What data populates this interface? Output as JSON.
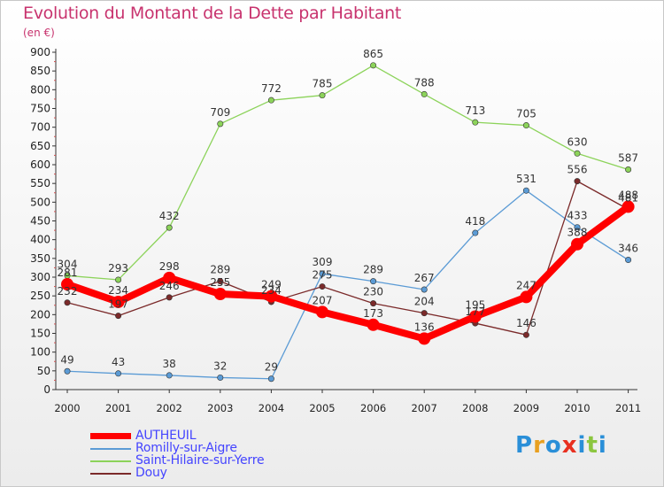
{
  "title": "Evolution du Montant de la Dette par Habitant",
  "subtitle": "(en €)",
  "logo": {
    "text": "Proxiti",
    "letter_colors": [
      "#2a8fd8",
      "#e8a020",
      "#2a8fd8",
      "#e83020",
      "#2a8fd8",
      "#8cc63f",
      "#2a8fd8"
    ]
  },
  "chart_data": {
    "type": "line",
    "x": [
      "2000",
      "2001",
      "2002",
      "2003",
      "2004",
      "2005",
      "2006",
      "2007",
      "2008",
      "2009",
      "2010",
      "2011"
    ],
    "yticks": [
      "0",
      "50",
      "100",
      "150",
      "200",
      "250",
      "300",
      "350",
      "400",
      "450",
      "500",
      "550",
      "600",
      "650",
      "700",
      "750",
      "800",
      "850",
      "900"
    ],
    "ylim": [
      0,
      900
    ],
    "grid": false,
    "legend_position": "bottom-left",
    "series": [
      {
        "name": "AUTHEUIL",
        "color": "#ff0000",
        "values": [
          281,
          234,
          298,
          255,
          249,
          207,
          173,
          136,
          195,
          247,
          388,
          488
        ],
        "labels": [
          "281",
          "234",
          "298",
          "255",
          "249",
          "207",
          "173",
          "136",
          "195",
          "247",
          "388",
          "488"
        ]
      },
      {
        "name": "Romilly-sur-Aigre",
        "color": "#5b9bd5",
        "values": [
          49,
          43,
          38,
          32,
          29,
          309,
          289,
          267,
          418,
          531,
          433,
          346
        ],
        "labels": [
          "49",
          "43",
          "38",
          "32",
          "29",
          "309",
          "289",
          "267",
          "418",
          "531",
          "433",
          "346"
        ]
      },
      {
        "name": "Saint-Hilaire-sur-Yerre",
        "color": "#8cd35a",
        "values": [
          304,
          293,
          432,
          709,
          772,
          785,
          865,
          788,
          713,
          705,
          630,
          587
        ],
        "labels": [
          "304",
          "293",
          "432",
          "709",
          "772",
          "785",
          "865",
          "788",
          "713",
          "705",
          "630",
          "587"
        ]
      },
      {
        "name": "Douy",
        "color": "#7b2a2a",
        "values": [
          232,
          197,
          246,
          289,
          234,
          275,
          230,
          204,
          177,
          146,
          556,
          481
        ],
        "labels": [
          "232",
          "197",
          "246",
          "289",
          "234",
          "275",
          "230",
          "204",
          "177",
          "146",
          "556",
          "481"
        ]
      }
    ]
  }
}
